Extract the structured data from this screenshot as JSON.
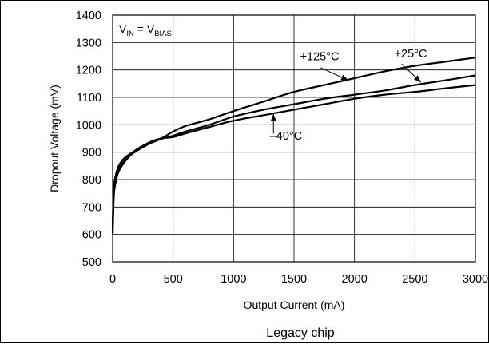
{
  "chart_data": {
    "type": "line",
    "xlabel": "Output Current (mA)",
    "ylabel": "Dropout Voltage (mV)",
    "xlim": [
      0,
      3000
    ],
    "ylim": [
      500,
      1400
    ],
    "x_ticks": [
      0,
      500,
      1000,
      1500,
      2000,
      2500,
      3000
    ],
    "y_ticks": [
      500,
      600,
      700,
      800,
      900,
      1000,
      1100,
      1200,
      1300,
      1400
    ],
    "x_tick_labels": [
      "0",
      "500",
      "1000",
      "1500",
      "2000",
      "2500",
      "3000"
    ],
    "y_tick_labels": [
      "500",
      "600",
      "700",
      "800",
      "900",
      "1000",
      "1100",
      "1200",
      "1300",
      "1400"
    ],
    "grid": true,
    "condition": {
      "lhs": "V",
      "lhs_sub": "IN",
      "eq": " = ",
      "rhs": "V",
      "rhs_sub": "BIAS"
    },
    "caption": "Legacy chip",
    "series": [
      {
        "name": "+125°C",
        "x": [
          0,
          10,
          25,
          50,
          100,
          150,
          200,
          300,
          400,
          500,
          600,
          800,
          1000,
          1250,
          1500,
          1750,
          2000,
          2250,
          2500,
          2750,
          3000
        ],
        "y": [
          600,
          740,
          790,
          830,
          865,
          890,
          910,
          935,
          950,
          975,
          995,
          1020,
          1050,
          1085,
          1120,
          1145,
          1170,
          1195,
          1215,
          1230,
          1245
        ]
      },
      {
        "name": "+25°C",
        "x": [
          0,
          10,
          25,
          50,
          100,
          150,
          200,
          300,
          400,
          500,
          600,
          800,
          1000,
          1250,
          1500,
          1750,
          2000,
          2250,
          2500,
          2750,
          3000
        ],
        "y": [
          620,
          760,
          800,
          840,
          870,
          890,
          905,
          930,
          948,
          960,
          975,
          1000,
          1030,
          1055,
          1075,
          1095,
          1110,
          1125,
          1145,
          1162,
          1180
        ]
      },
      {
        "name": "–40°C",
        "x": [
          0,
          10,
          25,
          50,
          100,
          150,
          200,
          300,
          400,
          500,
          600,
          800,
          1000,
          1250,
          1500,
          1750,
          2000,
          2250,
          2500,
          2750,
          3000
        ],
        "y": [
          640,
          770,
          815,
          850,
          880,
          895,
          910,
          935,
          950,
          955,
          968,
          992,
          1015,
          1035,
          1055,
          1075,
          1095,
          1110,
          1120,
          1133,
          1145
        ]
      }
    ],
    "annotations": [
      {
        "text": "+125°C",
        "series": "+125°C",
        "text_x": 1550,
        "text_y": 1235,
        "arrow_to_x": 1950,
        "arrow_to_y": 1162,
        "arrow_from_x": 1720,
        "arrow_from_y": 1208
      },
      {
        "text": "+25°C",
        "series": "+25°C",
        "text_x": 2330,
        "text_y": 1245,
        "arrow_to_x": 2550,
        "arrow_to_y": 1155,
        "arrow_from_x": 2390,
        "arrow_from_y": 1222
      },
      {
        "text": "–40°C",
        "series": "–40°C",
        "text_x": 1300,
        "text_y": 945,
        "arrow_to_x": 1330,
        "arrow_to_y": 1040,
        "arrow_from_x": 1330,
        "arrow_from_y": 968
      }
    ]
  }
}
